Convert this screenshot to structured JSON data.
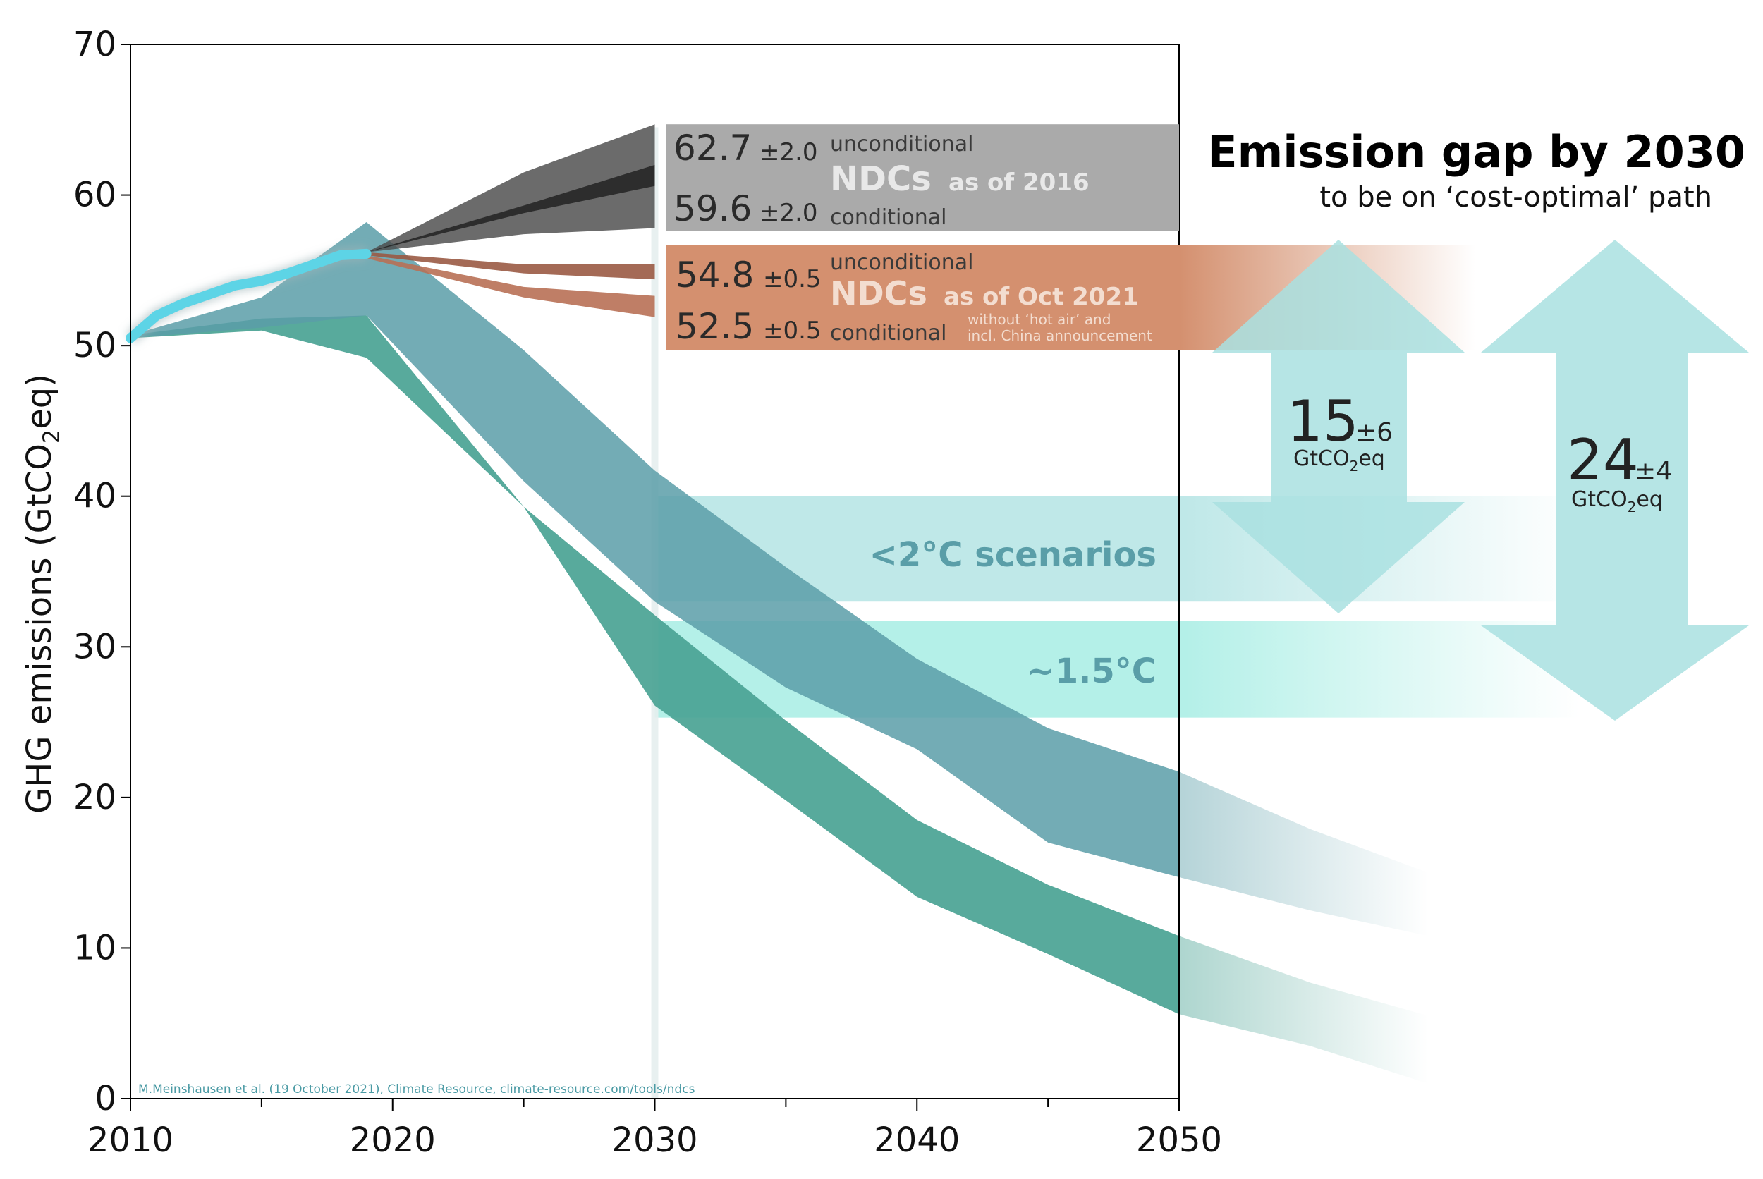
{
  "chart_data": {
    "type": "area",
    "ylabel_main": "GHG emissions (GtCO",
    "ylabel_sub": "2",
    "ylabel_end": "eq)",
    "xlim": [
      2010,
      2050
    ],
    "ylim": [
      0,
      70
    ],
    "x_ticks": [
      2010,
      2020,
      2030,
      2040,
      2050
    ],
    "y_ticks": [
      0,
      10,
      20,
      30,
      40,
      50,
      60,
      70
    ],
    "credit": "M.Meinshausen et al. (19 October 2021), Climate Resource, climate-resource.com/tools/ndcs",
    "colors": {
      "historical": "#5dd4e6",
      "ndc2016": "#4a4a4a",
      "ndc2021": "#b87055",
      "scen2c": "#5a9ea8",
      "scen15": "#4aa394",
      "pathway2c_bar": "#bfe8e8",
      "pathway15_bar": "#b4f0e8",
      "gap_arrow": "#a9e0e0",
      "box2016": "#aaaaaa",
      "box2021": "#d4906f"
    },
    "historical": {
      "x": [
        2010,
        2011,
        2012,
        2013,
        2014,
        2015,
        2016,
        2017,
        2018,
        2019
      ],
      "y": [
        50.5,
        52.0,
        52.8,
        53.4,
        54.0,
        54.3,
        54.8,
        55.4,
        56.0,
        56.1
      ]
    },
    "ndc_2016": {
      "x": [
        2019,
        2025,
        2030
      ],
      "upper": [
        56.2,
        61.5,
        64.7
      ],
      "lower": [
        56.2,
        57.4,
        57.8
      ],
      "center_upper": [
        56.2,
        59.3,
        62.0
      ],
      "center_lower": [
        56.2,
        58.8,
        60.6
      ]
    },
    "ndc_2021": {
      "unconditional": {
        "x": [
          2019,
          2025,
          2030
        ],
        "upper": [
          56.2,
          55.4,
          55.4
        ],
        "lower": [
          56.0,
          54.8,
          54.4
        ]
      },
      "conditional": {
        "x": [
          2019,
          2025,
          2030
        ],
        "upper": [
          56.0,
          53.9,
          53.3
        ],
        "lower": [
          55.8,
          53.2,
          51.9
        ]
      }
    },
    "scenario_2c": {
      "name": "<2°C scenarios",
      "x": [
        2010,
        2015,
        2019,
        2025,
        2030,
        2035,
        2040,
        2045,
        2050
      ],
      "upper": [
        50.7,
        53.2,
        58.2,
        49.7,
        41.7,
        35.3,
        29.2,
        24.6,
        21.7
      ],
      "lower": [
        50.5,
        51.2,
        52.0,
        41.0,
        33.0,
        27.3,
        23.2,
        17.0,
        14.7
      ]
    },
    "scenario_15": {
      "name": "~1.5°C",
      "x": [
        2010,
        2015,
        2019,
        2025,
        2030,
        2035,
        2040,
        2045,
        2050
      ],
      "upper": [
        50.7,
        51.8,
        52.0,
        39.3,
        32.1,
        25.1,
        18.5,
        14.2,
        10.8
      ],
      "lower": [
        50.5,
        51.0,
        49.2,
        39.3,
        26.1,
        19.8,
        13.4,
        9.6,
        5.6
      ]
    },
    "scenario_fade": {
      "x": [
        2050,
        2055,
        2059.5
      ],
      "s2c_upper": [
        21.7,
        17.9,
        15.0
      ],
      "s2c_lower": [
        14.7,
        12.5,
        10.8
      ],
      "s15_upper": [
        10.8,
        7.7,
        5.5
      ],
      "s15_lower": [
        5.6,
        3.5,
        1.0
      ]
    },
    "box_2016": {
      "unconditional_value": "62.7",
      "unconditional_pm": "±2.0",
      "unconditional_label": "unconditional",
      "title": "NDCs",
      "title_suffix": "as of 2016",
      "conditional_value": "59.6",
      "conditional_pm": "±2.0",
      "conditional_label": "conditional"
    },
    "box_2021": {
      "unconditional_value": "54.8",
      "unconditional_pm": "±0.5",
      "unconditional_label": "unconditional",
      "title": "NDCs",
      "title_suffix": "as of Oct 2021",
      "conditional_value": "52.5",
      "conditional_pm": "±0.5",
      "conditional_label": "conditional",
      "note_line1": "without ‘hot air’ and",
      "note_line2": "incl. China announcement"
    },
    "pathway_labels": {
      "two_degree": "<2°C scenarios",
      "one_five": "~1.5°C"
    },
    "gap": {
      "title": "Emission gap by 2030",
      "subtitle": "to be on ‘cost-optimal’ path",
      "gap2c_value": "15",
      "gap2c_pm": "±6",
      "gap15_value": "24",
      "gap15_pm": "±4",
      "unit_main": "GtCO",
      "unit_sub": "2",
      "unit_end": "eq"
    }
  }
}
